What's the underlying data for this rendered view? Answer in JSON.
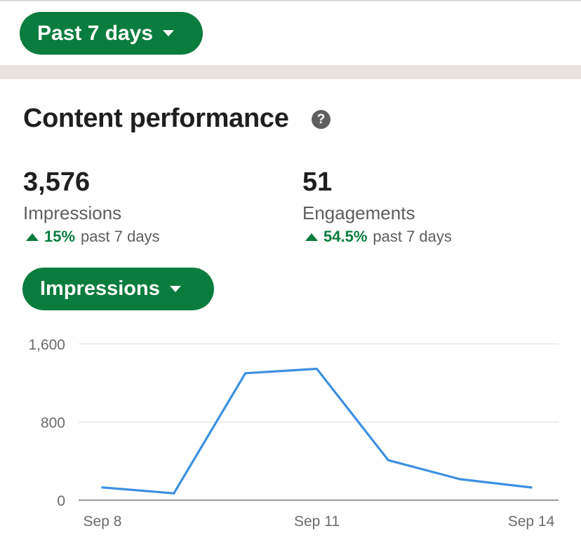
{
  "filter": {
    "period_label": "Past 7 days"
  },
  "section": {
    "title": "Content performance",
    "help_icon": "question-circle-icon"
  },
  "metrics": [
    {
      "value": "3,576",
      "label": "Impressions",
      "change": "15%",
      "period": "past 7 days",
      "direction": "up"
    },
    {
      "value": "51",
      "label": "Engagements",
      "change": "54.5%",
      "period": "past 7 days",
      "direction": "up"
    }
  ],
  "metric_selector": {
    "label": "Impressions"
  },
  "colors": {
    "accent_green": "#0a7c3e",
    "line_blue": "#3d8fe0",
    "divider_band": "#e8e4dd"
  },
  "chart_data": {
    "type": "line",
    "x": [
      "Sep 8",
      "Sep 9",
      "Sep 10",
      "Sep 11",
      "Sep 12",
      "Sep 13",
      "Sep 14"
    ],
    "x_tick_labels": [
      "Sep 8",
      "Sep 11",
      "Sep 14"
    ],
    "y_ticks": [
      "1,600",
      "800",
      "0"
    ],
    "y_tick_values": [
      1600,
      800,
      0
    ],
    "ylim": [
      0,
      1600
    ],
    "grid": true,
    "series": [
      {
        "values": [
          130,
          70,
          1300,
          1345,
          410,
          215,
          130
        ]
      }
    ]
  }
}
